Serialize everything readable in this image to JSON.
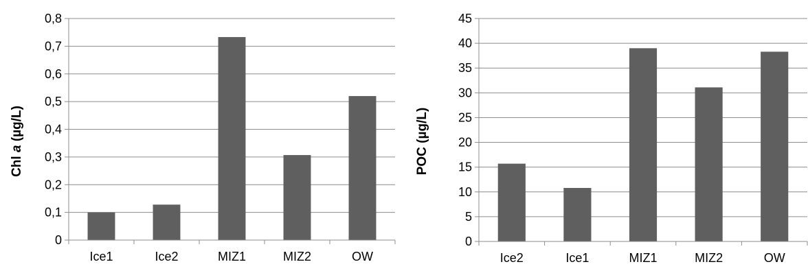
{
  "chart_data": [
    {
      "type": "bar",
      "categories": [
        "Ice1",
        "Ice2",
        "MIZ1",
        "MIZ2",
        "OW"
      ],
      "values": [
        0.1,
        0.128,
        0.733,
        0.307,
        0.52
      ],
      "ylabel_prefix": "Chl ",
      "ylabel_italic": "a",
      "ylabel_suffix": " (µg/L)",
      "ylim": [
        0,
        0.8
      ],
      "yticks": [
        "0",
        "0,1",
        "0,2",
        "0,3",
        "0,4",
        "0,5",
        "0,6",
        "0,7",
        "0,8"
      ],
      "grid": true,
      "bar_color": "#5f5f5f"
    },
    {
      "type": "bar",
      "categories": [
        "Ice2",
        "Ice1",
        "MIZ1",
        "MIZ2",
        "OW"
      ],
      "values": [
        15.7,
        10.8,
        39.0,
        31.1,
        38.3
      ],
      "ylabel": "POC (µg/L)",
      "ylim": [
        0,
        45
      ],
      "yticks": [
        "0",
        "5",
        "10",
        "15",
        "20",
        "25",
        "30",
        "35",
        "40",
        "45"
      ],
      "grid": true,
      "bar_color": "#5f5f5f"
    }
  ]
}
